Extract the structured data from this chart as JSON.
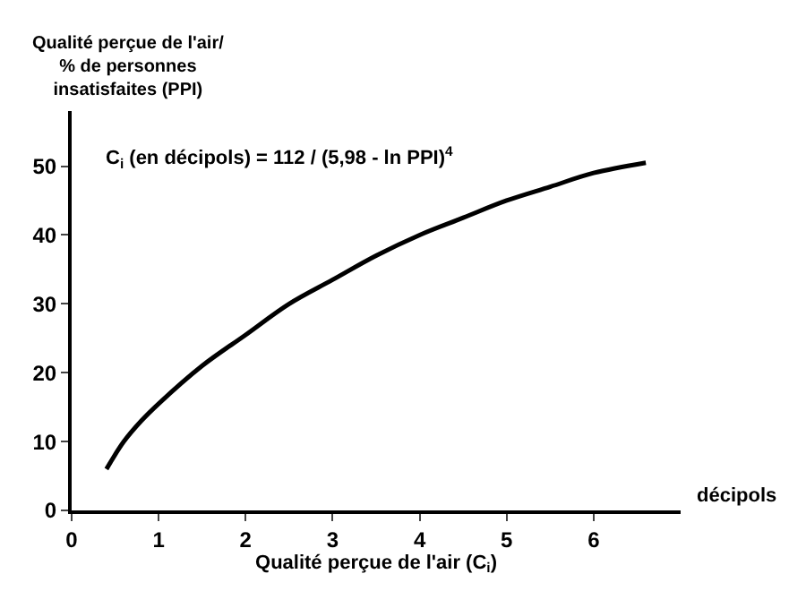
{
  "chart_data": {
    "type": "line",
    "ylabel": "Qualité perçue de l'air/\n% de personnes\ninsatisfaites (PPI)",
    "xlabel": "Qualité perçue de l'air (C$_{i}$)",
    "x": [
      0.4,
      0.6,
      0.8,
      1,
      1.5,
      2,
      2.5,
      3,
      3.5,
      4,
      4.5,
      5,
      5.5,
      6,
      6.6
    ],
    "series": [
      {
        "color": "#000000",
        "values": [
          6,
          10,
          13,
          15.5,
          21,
          25.5,
          30,
          33.5,
          37,
          40,
          42.5,
          45,
          47,
          49,
          50.5
        ]
      }
    ],
    "xlim": [
      0,
      7
    ],
    "xticks": [
      0,
      1,
      2,
      3,
      4,
      5,
      6
    ],
    "ylim": [
      0,
      58
    ],
    "yticks": [
      0,
      10,
      20,
      30,
      40,
      50
    ],
    "annotations": [
      "décipols",
      "C$_{i}$ (en décipols) = 112 / (5,98 - ln PPI)$^{4}$"
    ],
    "marker": "none",
    "line_style": "solid"
  }
}
